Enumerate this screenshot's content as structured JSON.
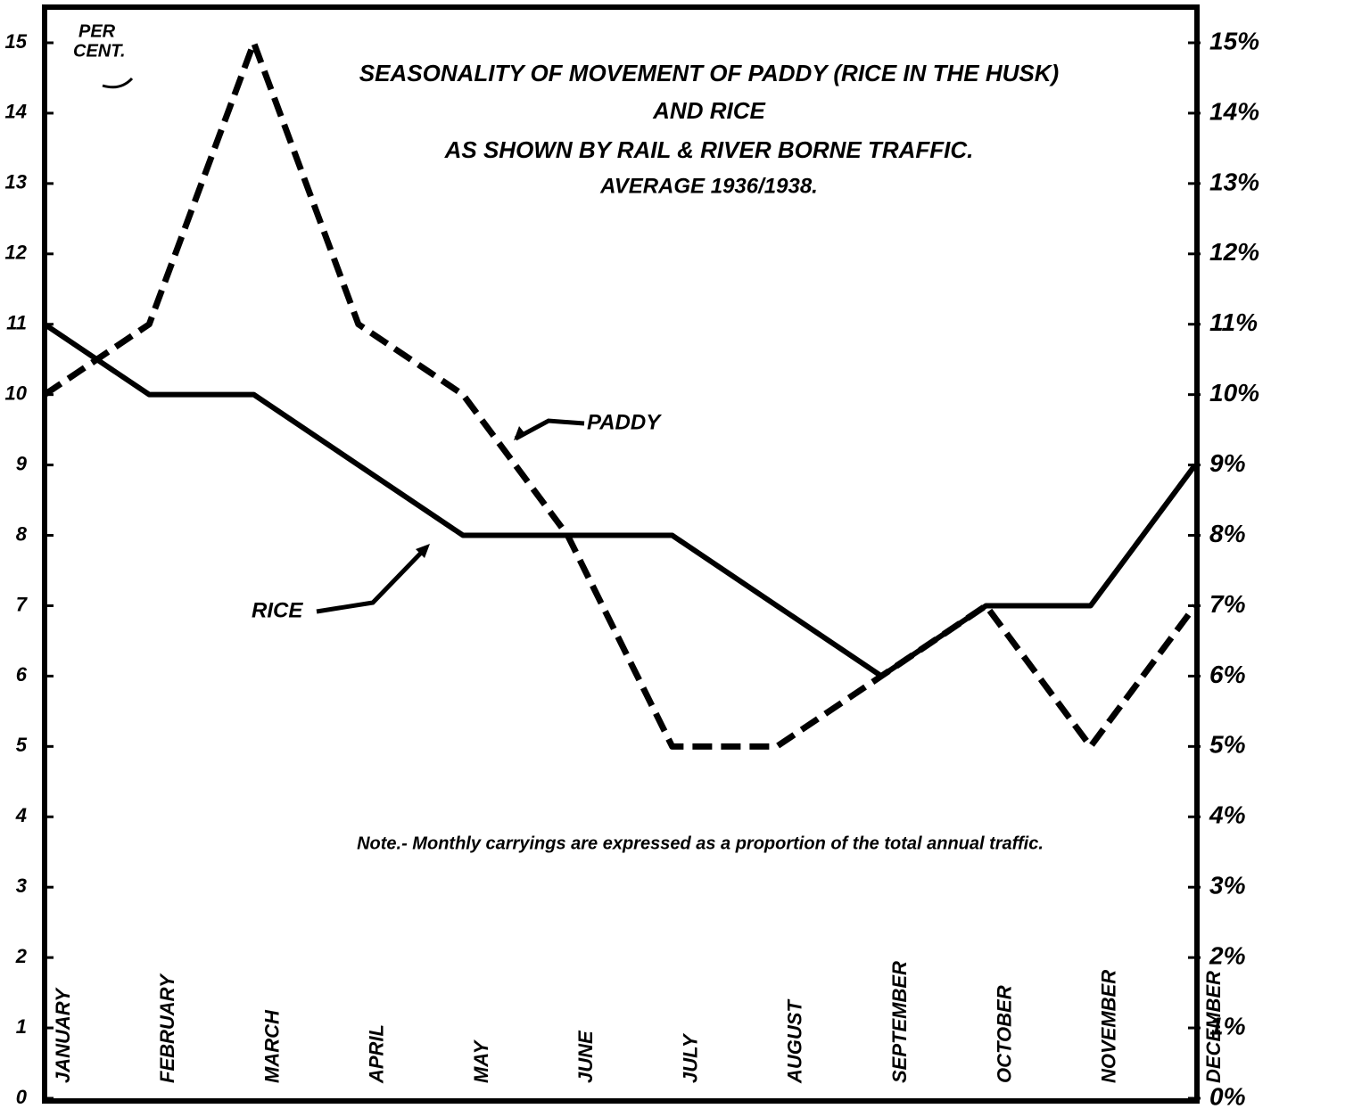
{
  "chart_data": {
    "type": "line",
    "title": [
      "SEASONALITY OF MOVEMENT OF PADDY (RICE IN THE HUSK)",
      "AND RICE",
      "AS SHOWN BY RAIL & RIVER BORNE TRAFFIC.",
      "AVERAGE 1936/1938."
    ],
    "y_label": [
      "PER",
      "CENT."
    ],
    "note": "Note.- Monthly carryings are expressed as a proportion of the total annual traffic.",
    "categories": [
      "JANUARY",
      "FEBRUARY",
      "MARCH",
      "APRIL",
      "MAY",
      "JUNE",
      "JULY",
      "AUGUST",
      "SEPTEMBER",
      "OCTOBER",
      "NOVEMBER",
      "DECEMBER"
    ],
    "series": [
      {
        "name": "PADDY",
        "color": "#000000",
        "dashed": true,
        "values": [
          10,
          11,
          15,
          11,
          10,
          8,
          5,
          5,
          6,
          7,
          5,
          7
        ]
      },
      {
        "name": "RICE",
        "color": "#000000",
        "dashed": false,
        "values": [
          11,
          10,
          10,
          9,
          8,
          8,
          8,
          7,
          6,
          7,
          7,
          9
        ]
      }
    ],
    "ylim": [
      0,
      15
    ],
    "yticks": [
      0,
      1,
      2,
      3,
      4,
      5,
      6,
      7,
      8,
      9,
      10,
      11,
      12,
      13,
      14,
      15
    ],
    "y2lim": [
      0,
      15
    ],
    "y2ticks": [
      {
        "value": 0,
        "label": "0%"
      },
      {
        "value": 1,
        "label": "1%"
      },
      {
        "value": 2,
        "label": "2%"
      },
      {
        "value": 3,
        "label": "3%"
      },
      {
        "value": 4,
        "label": "4%"
      },
      {
        "value": 5,
        "label": "5%"
      },
      {
        "value": 6,
        "label": "6%"
      },
      {
        "value": 7,
        "label": "7%"
      },
      {
        "value": 8,
        "label": "8%"
      },
      {
        "value": 9,
        "label": "9%"
      },
      {
        "value": 10,
        "label": "10%"
      },
      {
        "value": 11,
        "label": "11%"
      },
      {
        "value": 12,
        "label": "12%"
      },
      {
        "value": 13,
        "label": "13%"
      },
      {
        "value": 14,
        "label": "14%"
      },
      {
        "value": 15,
        "label": "15%"
      }
    ]
  }
}
